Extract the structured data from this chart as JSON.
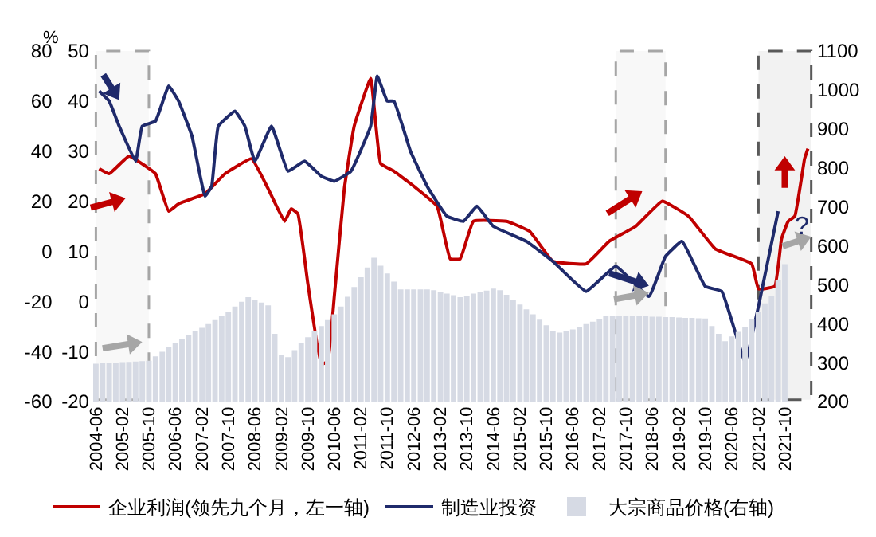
{
  "chart_data": {
    "type": "line",
    "ylabel": "%",
    "xlim": [
      "2004-04-15",
      "2022-07-10"
    ],
    "xticks": [
      "2004-06",
      "2005-02",
      "2005-10",
      "2006-06",
      "2007-02",
      "2007-10",
      "2008-06",
      "2009-02",
      "2009-10",
      "2010-06",
      "2011-02",
      "2011-10",
      "2012-06",
      "2013-02",
      "2013-10",
      "2014-06",
      "2015-02",
      "2015-10",
      "2016-06",
      "2017-02",
      "2017-10",
      "2018-06",
      "2019-02",
      "2019-10",
      "2020-06",
      "2021-02",
      "2021-10"
    ],
    "ylim": [
      -60,
      80
    ],
    "yticks": [
      -60,
      -40,
      -20,
      0,
      20,
      40,
      60,
      80
    ],
    "y2lim": [
      -20,
      50
    ],
    "y2ticks": [
      -20,
      -10,
      0,
      10,
      20,
      30,
      40,
      50
    ],
    "y3lim": [
      200,
      1100
    ],
    "y3ticks": [
      200,
      300,
      400,
      500,
      600,
      700,
      800,
      900,
      1000,
      1100
    ],
    "legend": "bottom",
    "series": [
      {
        "name": "大宗商品价格(右轴)",
        "type": "bar",
        "axis": "y3",
        "color": "#d6dae4",
        "x": [
          "2004-06",
          "2004-08",
          "2004-10",
          "2004-12",
          "2005-02",
          "2005-04",
          "2005-06",
          "2005-08",
          "2005-10",
          "2005-12",
          "2006-02",
          "2006-04",
          "2006-06",
          "2006-08",
          "2006-10",
          "2006-12",
          "2007-02",
          "2007-04",
          "2007-06",
          "2007-08",
          "2007-10",
          "2007-12",
          "2008-02",
          "2008-04",
          "2008-06",
          "2008-08",
          "2008-10",
          "2008-12",
          "2009-02",
          "2009-04",
          "2009-06",
          "2009-08",
          "2009-10",
          "2009-12",
          "2010-02",
          "2010-04",
          "2010-06",
          "2010-08",
          "2010-10",
          "2010-12",
          "2011-02",
          "2011-04",
          "2011-06",
          "2011-08",
          "2011-10",
          "2011-12",
          "2012-02",
          "2012-04",
          "2012-06",
          "2012-08",
          "2012-10",
          "2012-12",
          "2013-02",
          "2013-04",
          "2013-06",
          "2013-08",
          "2013-10",
          "2013-12",
          "2014-02",
          "2014-04",
          "2014-06",
          "2014-08",
          "2014-10",
          "2014-12",
          "2015-02",
          "2015-04",
          "2015-06",
          "2015-08",
          "2015-10",
          "2015-12",
          "2016-02",
          "2016-04",
          "2016-06",
          "2016-08",
          "2016-10",
          "2016-12",
          "2017-02",
          "2017-04",
          "2017-06",
          "2017-08",
          "2017-10",
          "2017-12",
          "2018-02",
          "2018-04",
          "2018-06",
          "2018-08",
          "2018-10",
          "2018-12",
          "2019-02",
          "2019-04",
          "2019-06",
          "2019-08",
          "2019-10",
          "2019-12",
          "2020-02",
          "2020-04",
          "2020-06",
          "2020-08",
          "2020-10",
          "2020-12",
          "2021-02",
          "2021-04",
          "2021-06",
          "2021-08",
          "2021-10"
        ],
        "values": [
          297,
          298,
          299,
          300,
          301,
          302,
          303,
          304,
          305,
          316,
          328,
          339,
          350,
          360,
          370,
          380,
          389,
          399,
          409,
          419,
          431,
          444,
          456,
          468,
          461,
          454,
          447,
          374,
          320,
          314,
          332,
          350,
          365,
          380,
          394,
          409,
          424,
          444,
          469,
          494,
          519,
          544,
          569,
          549,
          529,
          508,
          488,
          488,
          488,
          488,
          488,
          486,
          482,
          477,
          473,
          468,
          472,
          477,
          481,
          485,
          490,
          486,
          474,
          462,
          449,
          437,
          424,
          410,
          396,
          382,
          377,
          381,
          385,
          392,
          399,
          405,
          412,
          419,
          419,
          419,
          419,
          419,
          419,
          419,
          418,
          418,
          417,
          417,
          416,
          415,
          415,
          414,
          413,
          394,
          374,
          355,
          367,
          379,
          391,
          411,
          431,
          452,
          472,
          513,
          553
        ]
      },
      {
        "name": "企业利润(领先九个月，左一轴)",
        "color": "#c00000",
        "x": [
          "2004-07",
          "2004-10",
          "2005-04",
          "2005-09",
          "2005-12",
          "2006-04",
          "2006-07",
          "2006-11",
          "2007-03",
          "2007-09",
          "2008-05",
          "2008-10",
          "2009-03",
          "2009-05",
          "2009-07",
          "2009-10",
          "2010-02",
          "2010-04",
          "2010-06",
          "2010-09",
          "2010-12",
          "2011-05",
          "2011-08",
          "2011-12",
          "2012-06",
          "2013-01",
          "2013-05",
          "2013-08",
          "2013-12",
          "2014-10",
          "2015-05",
          "2015-12",
          "2016-10",
          "2017-05",
          "2018-01",
          "2018-09",
          "2019-05",
          "2020-01",
          "2020-12",
          "2021-02",
          "2021-07",
          "2021-09",
          "2021-11",
          "2022-01",
          "2022-04",
          "2022-05"
        ],
        "values": [
          33,
          31,
          38,
          34,
          31,
          16,
          19,
          21,
          23,
          31,
          37,
          25,
          12,
          17,
          15,
          -13,
          -45,
          -44,
          -18,
          25,
          50,
          69,
          35,
          32,
          26,
          18,
          -3,
          -3,
          12,
          12,
          8,
          -4,
          -5,
          4,
          10,
          20,
          14,
          1,
          -5,
          -15,
          -14,
          5,
          12,
          14,
          37,
          41
        ]
      },
      {
        "name": "制造业投资",
        "type": "line",
        "axis": "y2",
        "color": "#1f2a6b",
        "x": [
          "2004-07",
          "2004-10",
          "2005-01",
          "2005-06",
          "2005-08",
          "2005-12",
          "2006-04",
          "2006-07",
          "2006-11",
          "2007-03",
          "2007-05",
          "2007-07",
          "2007-12",
          "2008-03",
          "2008-06",
          "2008-11",
          "2009-04",
          "2009-09",
          "2010-02",
          "2010-06",
          "2010-11",
          "2011-05",
          "2011-07",
          "2011-10",
          "2011-12",
          "2012-05",
          "2012-10",
          "2013-04",
          "2013-09",
          "2014-01",
          "2014-06",
          "2015-04",
          "2015-12",
          "2016-10",
          "2017-07",
          "2018-05",
          "2018-10",
          "2019-03",
          "2019-10",
          "2020-03",
          "2020-10",
          "2021-02",
          "2021-08"
        ],
        "values": [
          42,
          40,
          35,
          28,
          35,
          36,
          43,
          40,
          33,
          21,
          23,
          35,
          38,
          35,
          28,
          35,
          26,
          28,
          25,
          24,
          26,
          35,
          45,
          40,
          40,
          30,
          23,
          17,
          16,
          19,
          15,
          12,
          8,
          2,
          7,
          1,
          9,
          12,
          3,
          2,
          -12,
          -1,
          18
        ]
      }
    ],
    "bands": [
      {
        "axis": "x",
        "from": "2004-06",
        "to": "2005-10",
        "color": "#a6a6a6"
      },
      {
        "axis": "x",
        "from": "2017-07",
        "to": "2018-10",
        "color": "#a6a6a6"
      },
      {
        "axis": "x",
        "from": "2021-02",
        "to": "2022-06",
        "color": "#595959"
      }
    ],
    "annotations": [
      "?"
    ]
  }
}
